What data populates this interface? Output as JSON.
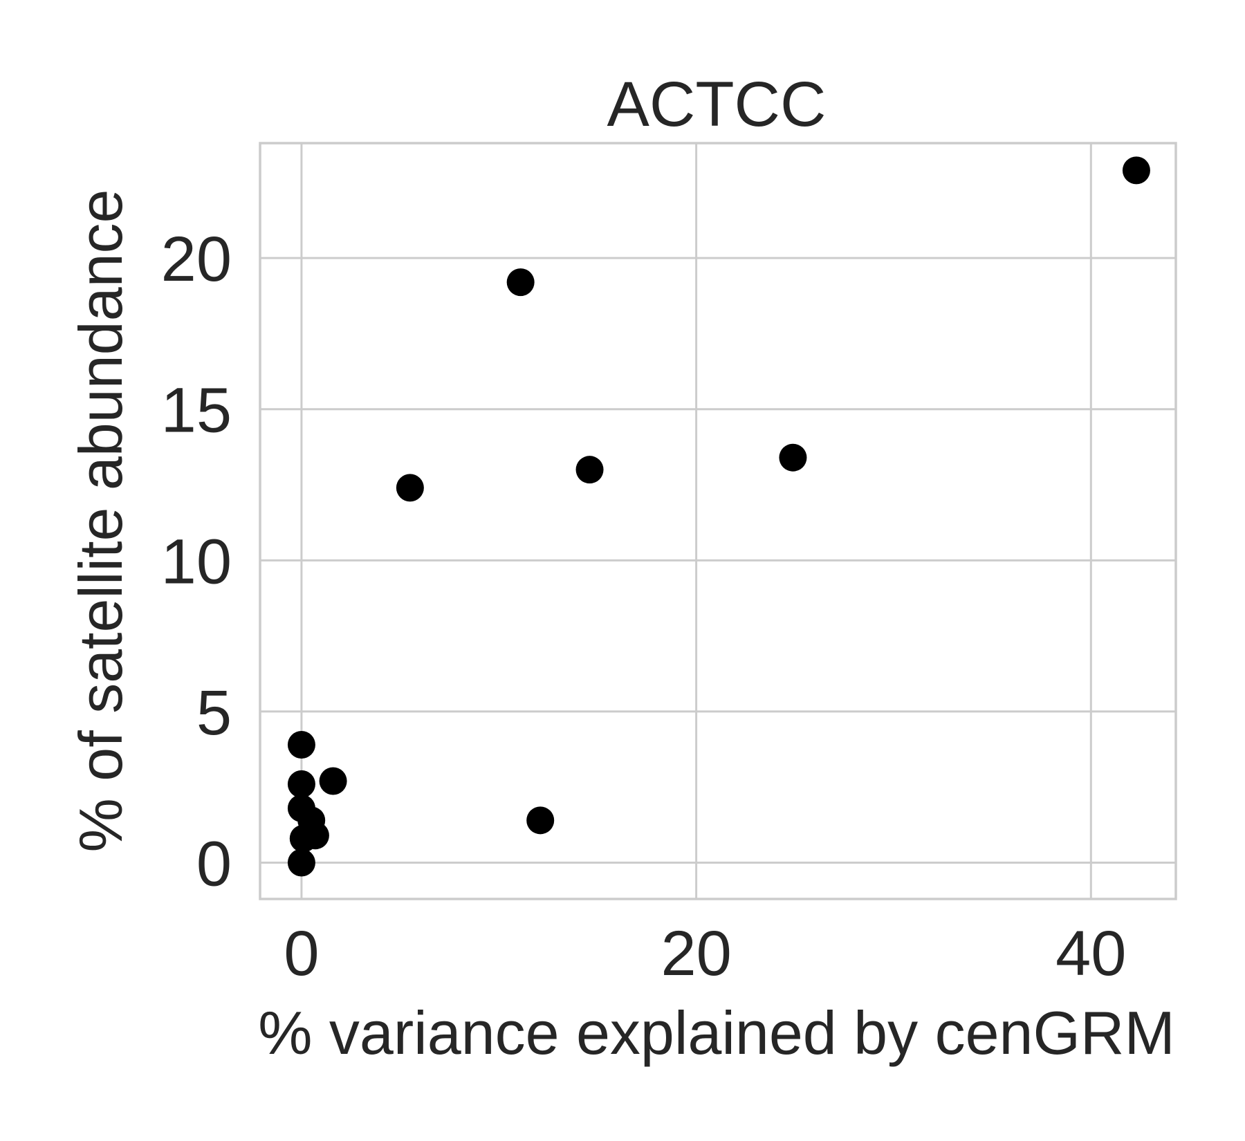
{
  "chart_data": {
    "type": "scatter",
    "title": "ACTCC",
    "xlabel": "% variance explained by cenGRM",
    "ylabel": "% of satellite abundance",
    "xlim": [
      -2.1,
      44.3
    ],
    "ylim": [
      -1.2,
      23.8
    ],
    "xticks": [
      0,
      20,
      40
    ],
    "yticks": [
      0,
      5,
      10,
      15,
      20
    ],
    "grid": true,
    "marker_color": "#000000",
    "points": [
      {
        "x": 0.0,
        "y": 0.0
      },
      {
        "x": 0.1,
        "y": 0.8
      },
      {
        "x": 0.7,
        "y": 0.9
      },
      {
        "x": 0.5,
        "y": 1.4
      },
      {
        "x": 0.0,
        "y": 1.8
      },
      {
        "x": 0.0,
        "y": 2.6
      },
      {
        "x": 1.6,
        "y": 2.7
      },
      {
        "x": 0.0,
        "y": 3.9
      },
      {
        "x": 12.1,
        "y": 1.4
      },
      {
        "x": 5.5,
        "y": 12.4
      },
      {
        "x": 14.6,
        "y": 13.0
      },
      {
        "x": 11.1,
        "y": 19.2
      },
      {
        "x": 24.9,
        "y": 13.4
      },
      {
        "x": 42.3,
        "y": 22.9
      }
    ]
  }
}
